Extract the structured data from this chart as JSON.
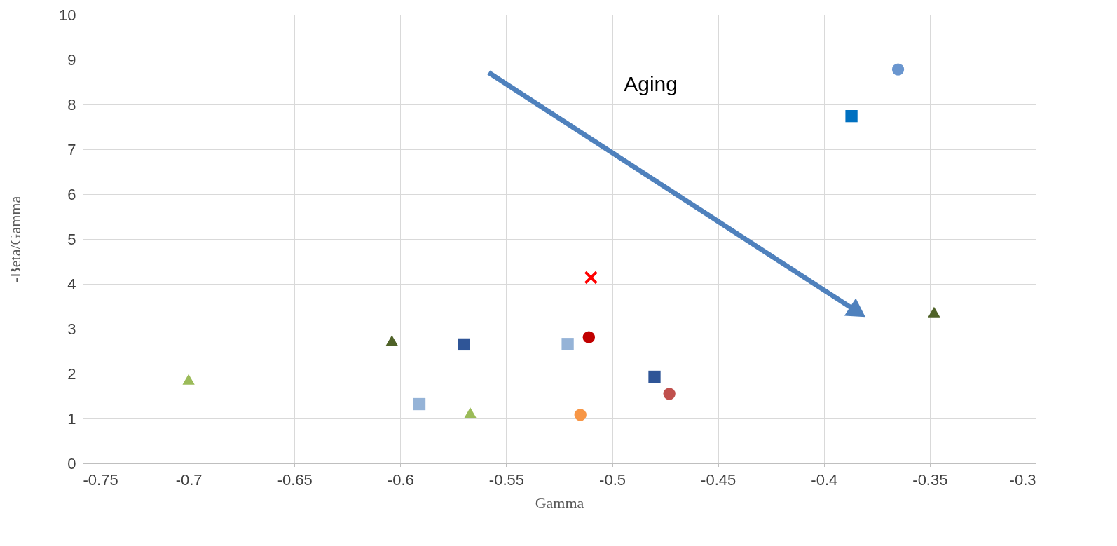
{
  "chart_data": {
    "type": "scatter",
    "xlabel": "Gamma",
    "ylabel": "-Beta/Gamma",
    "xlim": [
      -0.75,
      -0.3
    ],
    "xticks": [
      -0.75,
      -0.7,
      -0.65,
      -0.6,
      -0.55,
      -0.5,
      -0.45,
      -0.4,
      -0.35,
      -0.3
    ],
    "ylim": [
      0,
      10
    ],
    "yticks": [
      0,
      1,
      2,
      3,
      4,
      5,
      6,
      7,
      8,
      9,
      10
    ],
    "grid": true,
    "annotations": [
      "Aging"
    ],
    "series": [
      {
        "color": "#9bbb59",
        "marker": "triangle",
        "x": [
          -0.7
        ],
        "values": [
          1.87
        ]
      },
      {
        "color": "#4f6228",
        "marker": "triangle",
        "x": [
          -0.604
        ],
        "values": [
          2.74
        ]
      },
      {
        "color": "#2f5597",
        "marker": "square",
        "x": [
          -0.57
        ],
        "values": [
          2.65
        ]
      },
      {
        "color": "#95b3d7",
        "marker": "square",
        "x": [
          -0.591
        ],
        "values": [
          1.32
        ]
      },
      {
        "color": "#9bbb59",
        "marker": "triangle",
        "x": [
          -0.567
        ],
        "values": [
          1.13
        ]
      },
      {
        "color": "#95b3d7",
        "marker": "square",
        "x": [
          -0.521
        ],
        "values": [
          2.66
        ]
      },
      {
        "color": "#c00000",
        "marker": "circle",
        "x": [
          -0.511
        ],
        "values": [
          2.81
        ]
      },
      {
        "color": "#ff0000",
        "marker": "cross",
        "x": [
          -0.51
        ],
        "values": [
          4.14
        ]
      },
      {
        "color": "#f79646",
        "marker": "circle",
        "x": [
          -0.515
        ],
        "values": [
          1.08
        ]
      },
      {
        "color": "#2f5597",
        "marker": "square",
        "x": [
          -0.48
        ],
        "values": [
          1.93
        ]
      },
      {
        "color": "#c0504d",
        "marker": "circle",
        "x": [
          -0.473
        ],
        "values": [
          1.55
        ]
      },
      {
        "color": "#0070c0",
        "marker": "square",
        "x": [
          -0.387
        ],
        "values": [
          7.74
        ]
      },
      {
        "color": "#6a96cf",
        "marker": "circle",
        "x": [
          -0.365
        ],
        "values": [
          8.78
        ]
      },
      {
        "color": "#4f6228",
        "marker": "triangle",
        "x": [
          -0.348
        ],
        "values": [
          3.37
        ]
      }
    ]
  }
}
